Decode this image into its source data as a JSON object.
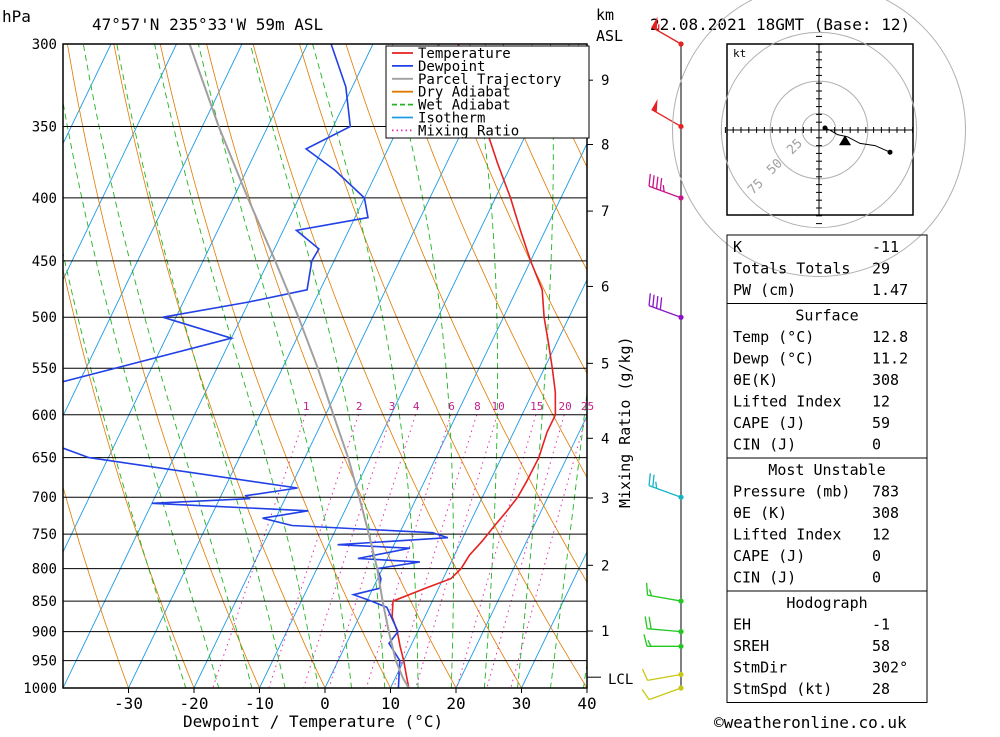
{
  "header": {
    "pressure_unit": "hPa",
    "location": "47°57'N  235°33'W  59m  ASL",
    "km_label": "km",
    "asl_label": "ASL",
    "datetime": "22.08.2021  18GMT  (Base: 12)"
  },
  "chart_data": {
    "type": "skew-t",
    "xlabel": "Dewpoint / Temperature (°C)",
    "ylabel": "hPa",
    "mixing_ratio_label": "Mixing Ratio (g/kg)",
    "x_ticks": [
      "-30",
      "-20",
      "-10",
      "0",
      "10",
      "20",
      "30",
      "40"
    ],
    "x_tick_values": [
      -30,
      -20,
      -10,
      0,
      10,
      20,
      30,
      40
    ],
    "x_range": [
      -40,
      40
    ],
    "pressure_levels": [
      300,
      350,
      400,
      450,
      500,
      550,
      600,
      650,
      700,
      750,
      800,
      850,
      900,
      950,
      1000
    ],
    "pressure_labels": [
      "300",
      "350",
      "400",
      "450",
      "500",
      "550",
      "600",
      "650",
      "700",
      "750",
      "800",
      "850",
      "900",
      "950",
      "1000"
    ],
    "pressure_range": [
      300,
      1000
    ],
    "km_ticks": [
      {
        "label": "9",
        "p": 321
      },
      {
        "label": "8",
        "p": 362
      },
      {
        "label": "7",
        "p": 410
      },
      {
        "label": "6",
        "p": 472
      },
      {
        "label": "5",
        "p": 545
      },
      {
        "label": "4",
        "p": 627
      },
      {
        "label": "3",
        "p": 701
      },
      {
        "label": "2",
        "p": 795
      },
      {
        "label": "1",
        "p": 899
      }
    ],
    "lcl_label": "LCL",
    "lcl_pressure": 980,
    "mixing_ratio_values": [
      "1",
      "2",
      "3",
      "4",
      "6",
      "8",
      "10",
      "15",
      "20",
      "25"
    ],
    "legend": [
      {
        "label": "Temperature",
        "color": "#e62121"
      },
      {
        "label": "Dewpoint",
        "color": "#2140e6"
      },
      {
        "label": "Parcel Trajectory",
        "color": "#a0a0a0"
      },
      {
        "label": "Dry Adiabat",
        "color": "#e07a00"
      },
      {
        "label": "Wet Adiabat",
        "color": "#22b422"
      },
      {
        "label": "Isotherm",
        "color": "#1e9be6"
      },
      {
        "label": "Mixing Ratio",
        "color": "#e030b0"
      }
    ],
    "series": [
      {
        "name": "Temperature",
        "color": "#e62121",
        "points": [
          [
            1000,
            12.8
          ],
          [
            975,
            11.4
          ],
          [
            950,
            10.0
          ],
          [
            925,
            8.4
          ],
          [
            900,
            6.9
          ],
          [
            875,
            5.0
          ],
          [
            850,
            4.0
          ],
          [
            830,
            8.0
          ],
          [
            815,
            11.2
          ],
          [
            800,
            12.0
          ],
          [
            780,
            12.3
          ],
          [
            760,
            13.2
          ],
          [
            740,
            13.9
          ],
          [
            720,
            14.7
          ],
          [
            700,
            15.4
          ],
          [
            680,
            15.6
          ],
          [
            650,
            15.7
          ],
          [
            620,
            15.1
          ],
          [
            600,
            15.1
          ],
          [
            575,
            13.4
          ],
          [
            550,
            11.2
          ],
          [
            525,
            8.8
          ],
          [
            500,
            6.2
          ],
          [
            475,
            3.9
          ],
          [
            450,
            0.0
          ],
          [
            425,
            -3.8
          ],
          [
            400,
            -7.7
          ],
          [
            375,
            -12.2
          ],
          [
            350,
            -16.8
          ],
          [
            325,
            -21.4
          ],
          [
            300,
            -27.0
          ]
        ]
      },
      {
        "name": "Dewpoint",
        "color": "#2140e6",
        "points": [
          [
            1000,
            11.2
          ],
          [
            950,
            9.4
          ],
          [
            920,
            6.5
          ],
          [
            900,
            7.0
          ],
          [
            860,
            3.5
          ],
          [
            850,
            0.7
          ],
          [
            840,
            -2.5
          ],
          [
            830,
            1.0
          ],
          [
            815,
            0.5
          ],
          [
            800,
            -0.8
          ],
          [
            790,
            5.2
          ],
          [
            785,
            -4.5
          ],
          [
            770,
            2.7
          ],
          [
            765,
            -8.6
          ],
          [
            755,
            7.7
          ],
          [
            748,
            5.0
          ],
          [
            738,
            -17.0
          ],
          [
            728,
            -22.0
          ],
          [
            718,
            -15.6
          ],
          [
            708,
            -40.0
          ],
          [
            702,
            -25.5
          ],
          [
            698,
            -26.2
          ],
          [
            688,
            -18.9
          ],
          [
            650,
            -53.0
          ],
          [
            600,
            -74.0
          ],
          [
            590,
            -75.0
          ],
          [
            520,
            -40.0
          ],
          [
            500,
            -52.0
          ],
          [
            486,
            -40.0
          ],
          [
            475,
            -32.0
          ],
          [
            450,
            -33.4
          ],
          [
            440,
            -33.2
          ],
          [
            425,
            -38.0
          ],
          [
            415,
            -28.0
          ],
          [
            400,
            -30.0
          ],
          [
            380,
            -36.5
          ],
          [
            365,
            -42.5
          ],
          [
            350,
            -37.4
          ],
          [
            325,
            -41.0
          ],
          [
            300,
            -46.4
          ]
        ]
      },
      {
        "name": "Parcel Trajectory",
        "color": "#a0a0a0",
        "points": [
          [
            1000,
            12.8
          ],
          [
            982,
            11.2
          ],
          [
            950,
            8.8
          ],
          [
            900,
            5.6
          ],
          [
            850,
            2.4
          ],
          [
            800,
            -0.8
          ],
          [
            750,
            -4.6
          ],
          [
            700,
            -8.8
          ],
          [
            650,
            -13.4
          ],
          [
            600,
            -18.8
          ],
          [
            550,
            -24.6
          ],
          [
            500,
            -31.3
          ],
          [
            450,
            -39.0
          ],
          [
            400,
            -47.8
          ],
          [
            350,
            -57.5
          ],
          [
            300,
            -68.0
          ]
        ]
      }
    ],
    "wind_barbs": [
      {
        "p": 300,
        "color": "#e62121",
        "dir": 300,
        "speed": 55
      },
      {
        "p": 350,
        "color": "#e62121",
        "dir": 300,
        "speed": 50
      },
      {
        "p": 400,
        "color": "#c8148c",
        "dir": 290,
        "speed": 45
      },
      {
        "p": 500,
        "color": "#8c14c8",
        "dir": 290,
        "speed": 40
      },
      {
        "p": 700,
        "color": "#14b4c8",
        "dir": 290,
        "speed": 25
      },
      {
        "p": 850,
        "color": "#22c822",
        "dir": 280,
        "speed": 15
      },
      {
        "p": 900,
        "color": "#22c822",
        "dir": 275,
        "speed": 20
      },
      {
        "p": 925,
        "color": "#22c822",
        "dir": 270,
        "speed": 15
      },
      {
        "p": 975,
        "color": "#c8c814",
        "dir": 260,
        "speed": 10
      },
      {
        "p": 1000,
        "color": "#c8c814",
        "dir": 250,
        "speed": 10
      }
    ],
    "hodograph": {
      "unit_label": "kt",
      "ring_labels": [
        "25",
        "50",
        "75"
      ],
      "points": [
        [
          0,
          0
        ],
        [
          2,
          -1
        ],
        [
          5,
          -3
        ],
        [
          9,
          -4
        ],
        [
          14,
          -7
        ],
        [
          20,
          -8
        ],
        [
          26,
          -11
        ]
      ],
      "storm_motion": [
        8,
        -6
      ]
    },
    "grid": true
  },
  "indices": {
    "general": [
      {
        "label": "K",
        "value": "-11"
      },
      {
        "label": "Totals Totals",
        "value": "29"
      },
      {
        "label": "PW (cm)",
        "value": "1.47"
      }
    ],
    "surface": {
      "title": "Surface",
      "rows": [
        {
          "label": "Temp (°C)",
          "value": "12.8"
        },
        {
          "label": "Dewp (°C)",
          "value": "11.2"
        },
        {
          "label": "θE(K)",
          "value": "308"
        },
        {
          "label": "Lifted Index",
          "value": "12"
        },
        {
          "label": "CAPE (J)",
          "value": "59"
        },
        {
          "label": "CIN (J)",
          "value": "0"
        }
      ]
    },
    "most_unstable": {
      "title": "Most Unstable",
      "rows": [
        {
          "label": "Pressure (mb)",
          "value": "783"
        },
        {
          "label": "θE (K)",
          "value": "308"
        },
        {
          "label": "Lifted Index",
          "value": "12"
        },
        {
          "label": "CAPE (J)",
          "value": "0"
        },
        {
          "label": "CIN (J)",
          "value": "0"
        }
      ]
    },
    "hodograph": {
      "title": "Hodograph",
      "rows": [
        {
          "label": "EH",
          "value": "-1"
        },
        {
          "label": "SREH",
          "value": "58"
        },
        {
          "label": "StmDir",
          "value": "302°"
        },
        {
          "label": "StmSpd (kt)",
          "value": "28"
        }
      ]
    }
  },
  "footer": {
    "copyright": "©weatheronline.co.uk"
  }
}
